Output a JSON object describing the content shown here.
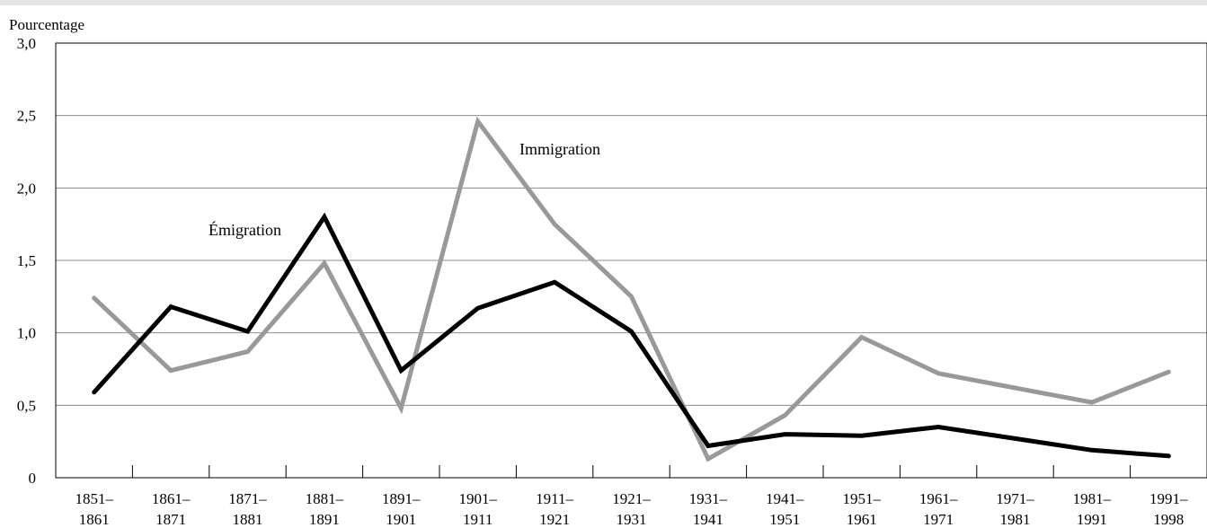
{
  "chart_data": {
    "type": "line",
    "ylabel": "Pourcentage",
    "ylim": [
      0,
      3.0
    ],
    "yticks": [
      0,
      0.5,
      1.0,
      1.5,
      2.0,
      2.5,
      3.0
    ],
    "ytick_labels": [
      "0",
      "0,5",
      "1,0",
      "1,5",
      "2,0",
      "2,5",
      "3,0"
    ],
    "categories": [
      [
        "1851–",
        "1861"
      ],
      [
        "1861–",
        "1871"
      ],
      [
        "1871–",
        "1881"
      ],
      [
        "1881–",
        "1891"
      ],
      [
        "1891–",
        "1901"
      ],
      [
        "1901–",
        "1911"
      ],
      [
        "1911–",
        "1921"
      ],
      [
        "1921–",
        "1931"
      ],
      [
        "1931–",
        "1941"
      ],
      [
        "1941–",
        "1951"
      ],
      [
        "1951–",
        "1961"
      ],
      [
        "1961–",
        "1971"
      ],
      [
        "1971–",
        "1981"
      ],
      [
        "1981–",
        "1991"
      ],
      [
        "1991–",
        "1998"
      ]
    ],
    "grid": true,
    "series": [
      {
        "name": "Immigration",
        "color": "#999999",
        "values": [
          1.24,
          0.74,
          0.87,
          1.48,
          0.48,
          2.46,
          1.75,
          1.25,
          0.13,
          0.43,
          0.97,
          0.72,
          0.62,
          0.52,
          0.73
        ]
      },
      {
        "name": "Émigration",
        "color": "#000000",
        "values": [
          0.59,
          1.18,
          1.01,
          1.8,
          0.74,
          1.17,
          1.35,
          1.01,
          0.22,
          0.3,
          0.29,
          0.35,
          0.27,
          0.19,
          0.15
        ]
      }
    ]
  }
}
